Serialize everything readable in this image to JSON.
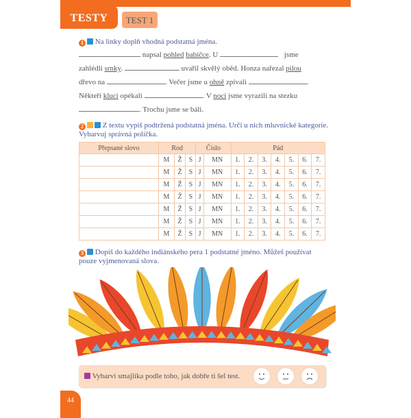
{
  "header": {
    "section": "TESTY",
    "test": "TEST 1"
  },
  "ex1": {
    "number": "1",
    "instruction": "Na linky doplň vhodná podstatná jména.",
    "t1": " napsal ",
    "w_pohled": "pohled",
    "w_babicce": "babičce",
    "t2": ". U ",
    "t3": " jsme",
    "t4": "zahlédli ",
    "w_srnky": "srnky",
    "t5": ". ",
    "t6": " uvařil skvělý oběd. Honza nařezal ",
    "w_pilou": "pilou",
    "t7": "dřevo na ",
    "t8": ". Večer jsme u ",
    "w_ohne": "ohně",
    "t9": " zpívali ",
    "t10": ".",
    "t11": "Někteří ",
    "w_kluci": "kluci",
    "t12": " opékali ",
    "t13": ". V ",
    "w_noci": "noci",
    "t14": " jsme vyrazili na stezku",
    "t15": ". Trochu jsme se báli."
  },
  "ex2": {
    "number": "2",
    "instruction": "Z textu vypiš podtržená podstatná jména. Urči u nich mluvnické kategorie. Vybarvuj správná políčka.",
    "headers": [
      "Přepsané slovo",
      "Rod",
      "Číslo",
      "Pád"
    ],
    "cells": [
      "M",
      "Ž",
      "S",
      "J",
      "MN",
      "1.",
      "2.",
      "3.",
      "4.",
      "5.",
      "6.",
      "7."
    ],
    "rows": 7
  },
  "ex3": {
    "number": "3",
    "instruction": "Dopiš do každého indiánského pera 1 podstatné jméno. Můžeš používat pouze vyjmenovaná slova."
  },
  "rating": {
    "text": "Vybarvi smajlíka podle toho, jak dobře ti šel test.",
    "faces": [
      "happy-face",
      "neutral-face",
      "sad-face"
    ]
  },
  "page_number": "44",
  "colors": {
    "accent": "#f26d1f",
    "light": "#fcdcc4",
    "feathers": [
      "#f5c431",
      "#e8472b",
      "#5fb4e0",
      "#f39a2a"
    ]
  }
}
